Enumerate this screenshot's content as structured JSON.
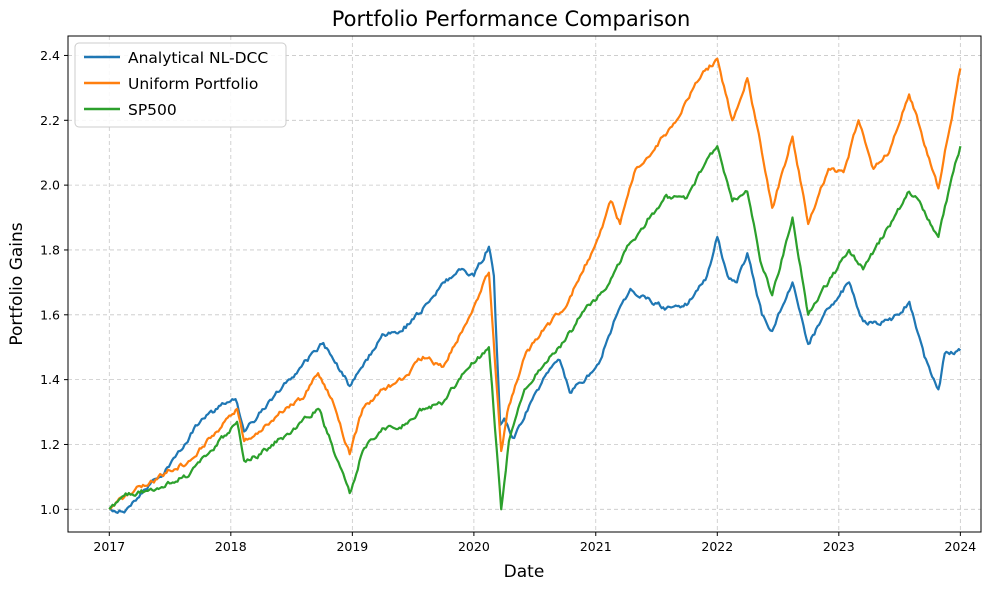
{
  "chart_data": {
    "type": "line",
    "title": "Portfolio Performance Comparison",
    "xlabel": "Date",
    "ylabel": "Portfolio Gains",
    "x_ticks": [
      "2017",
      "2018",
      "2019",
      "2020",
      "2021",
      "2022",
      "2023",
      "2024"
    ],
    "y_ticks": [
      "1.0",
      "1.2",
      "1.4",
      "1.6",
      "1.8",
      "2.0",
      "2.2",
      "2.4"
    ],
    "xlim": [
      "2016-08-30",
      "2024-03-03"
    ],
    "ylim": [
      0.93,
      2.46
    ],
    "grid": true,
    "legend_position": "top-left",
    "series": [
      {
        "name": "Analytical NL-DCC",
        "color": "#1f77b4",
        "points": [
          [
            "2017-01-01",
            1.0
          ],
          [
            "2017-02-15",
            0.99
          ],
          [
            "2017-04-15",
            1.06
          ],
          [
            "2017-06-01",
            1.1
          ],
          [
            "2017-08-01",
            1.18
          ],
          [
            "2017-10-01",
            1.27
          ],
          [
            "2017-12-01",
            1.32
          ],
          [
            "2018-01-15",
            1.34
          ],
          [
            "2018-02-10",
            1.24
          ],
          [
            "2018-04-01",
            1.3
          ],
          [
            "2018-06-01",
            1.37
          ],
          [
            "2018-08-01",
            1.44
          ],
          [
            "2018-10-01",
            1.51
          ],
          [
            "2018-11-15",
            1.45
          ],
          [
            "2018-12-24",
            1.38
          ],
          [
            "2019-02-01",
            1.44
          ],
          [
            "2019-04-01",
            1.54
          ],
          [
            "2019-06-01",
            1.55
          ],
          [
            "2019-08-01",
            1.62
          ],
          [
            "2019-10-01",
            1.7
          ],
          [
            "2019-12-01",
            1.74
          ],
          [
            "2020-01-01",
            1.72
          ],
          [
            "2020-02-15",
            1.81
          ],
          [
            "2020-03-01",
            1.72
          ],
          [
            "2020-03-20",
            1.26
          ],
          [
            "2020-04-01",
            1.28
          ],
          [
            "2020-05-01",
            1.22
          ],
          [
            "2020-06-15",
            1.32
          ],
          [
            "2020-08-01",
            1.41
          ],
          [
            "2020-09-15",
            1.46
          ],
          [
            "2020-10-15",
            1.36
          ],
          [
            "2020-12-01",
            1.4
          ],
          [
            "2021-01-15",
            1.46
          ],
          [
            "2021-03-01",
            1.59
          ],
          [
            "2021-04-15",
            1.68
          ],
          [
            "2021-06-01",
            1.65
          ],
          [
            "2021-08-01",
            1.62
          ],
          [
            "2021-10-01",
            1.63
          ],
          [
            "2021-12-01",
            1.72
          ],
          [
            "2022-01-01",
            1.84
          ],
          [
            "2022-02-01",
            1.72
          ],
          [
            "2022-03-01",
            1.7
          ],
          [
            "2022-04-01",
            1.79
          ],
          [
            "2022-05-15",
            1.6
          ],
          [
            "2022-06-15",
            1.55
          ],
          [
            "2022-08-15",
            1.7
          ],
          [
            "2022-10-01",
            1.51
          ],
          [
            "2022-12-01",
            1.62
          ],
          [
            "2023-02-01",
            1.7
          ],
          [
            "2023-03-15",
            1.58
          ],
          [
            "2023-05-01",
            1.57
          ],
          [
            "2023-07-01",
            1.6
          ],
          [
            "2023-08-01",
            1.64
          ],
          [
            "2023-09-15",
            1.47
          ],
          [
            "2023-10-27",
            1.37
          ],
          [
            "2023-11-15",
            1.48
          ],
          [
            "2024-01-01",
            1.49
          ]
        ]
      },
      {
        "name": "Uniform Portfolio",
        "color": "#ff7f0e",
        "points": [
          [
            "2017-01-01",
            1.0
          ],
          [
            "2017-03-01",
            1.05
          ],
          [
            "2017-05-01",
            1.08
          ],
          [
            "2017-07-01",
            1.12
          ],
          [
            "2017-09-01",
            1.15
          ],
          [
            "2017-11-01",
            1.22
          ],
          [
            "2018-01-20",
            1.31
          ],
          [
            "2018-02-10",
            1.21
          ],
          [
            "2018-04-01",
            1.24
          ],
          [
            "2018-06-01",
            1.3
          ],
          [
            "2018-08-01",
            1.34
          ],
          [
            "2018-09-20",
            1.42
          ],
          [
            "2018-11-01",
            1.34
          ],
          [
            "2018-12-24",
            1.17
          ],
          [
            "2019-02-01",
            1.31
          ],
          [
            "2019-04-01",
            1.37
          ],
          [
            "2019-06-01",
            1.4
          ],
          [
            "2019-08-01",
            1.47
          ],
          [
            "2019-10-01",
            1.44
          ],
          [
            "2019-12-01",
            1.56
          ],
          [
            "2020-02-15",
            1.73
          ],
          [
            "2020-03-23",
            1.18
          ],
          [
            "2020-04-15",
            1.32
          ],
          [
            "2020-06-01",
            1.47
          ],
          [
            "2020-08-01",
            1.56
          ],
          [
            "2020-10-01",
            1.62
          ],
          [
            "2020-11-15",
            1.72
          ],
          [
            "2021-01-01",
            1.82
          ],
          [
            "2021-02-15",
            1.95
          ],
          [
            "2021-03-15",
            1.88
          ],
          [
            "2021-05-01",
            2.05
          ],
          [
            "2021-07-01",
            2.12
          ],
          [
            "2021-09-01",
            2.2
          ],
          [
            "2021-11-15",
            2.34
          ],
          [
            "2022-01-01",
            2.39
          ],
          [
            "2022-02-15",
            2.2
          ],
          [
            "2022-04-01",
            2.33
          ],
          [
            "2022-05-15",
            2.1
          ],
          [
            "2022-06-15",
            1.93
          ],
          [
            "2022-08-15",
            2.15
          ],
          [
            "2022-10-01",
            1.88
          ],
          [
            "2022-12-01",
            2.05
          ],
          [
            "2023-01-15",
            2.04
          ],
          [
            "2023-03-01",
            2.2
          ],
          [
            "2023-04-15",
            2.05
          ],
          [
            "2023-06-01",
            2.1
          ],
          [
            "2023-07-31",
            2.28
          ],
          [
            "2023-09-01",
            2.18
          ],
          [
            "2023-10-27",
            1.99
          ],
          [
            "2023-12-01",
            2.18
          ],
          [
            "2024-01-01",
            2.36
          ]
        ]
      },
      {
        "name": "SP500",
        "color": "#2ca02c",
        "points": [
          [
            "2017-01-01",
            1.0
          ],
          [
            "2017-03-01",
            1.05
          ],
          [
            "2017-05-01",
            1.06
          ],
          [
            "2017-07-01",
            1.08
          ],
          [
            "2017-09-01",
            1.11
          ],
          [
            "2017-11-01",
            1.18
          ],
          [
            "2018-01-20",
            1.27
          ],
          [
            "2018-02-10",
            1.15
          ],
          [
            "2018-04-01",
            1.17
          ],
          [
            "2018-06-01",
            1.22
          ],
          [
            "2018-08-01",
            1.27
          ],
          [
            "2018-09-20",
            1.31
          ],
          [
            "2018-11-01",
            1.2
          ],
          [
            "2018-12-24",
            1.05
          ],
          [
            "2019-02-01",
            1.18
          ],
          [
            "2019-04-01",
            1.25
          ],
          [
            "2019-06-01",
            1.26
          ],
          [
            "2019-08-01",
            1.31
          ],
          [
            "2019-10-01",
            1.33
          ],
          [
            "2019-12-01",
            1.42
          ],
          [
            "2020-02-15",
            1.5
          ],
          [
            "2020-03-23",
            1.0
          ],
          [
            "2020-04-15",
            1.21
          ],
          [
            "2020-06-01",
            1.37
          ],
          [
            "2020-08-01",
            1.45
          ],
          [
            "2020-10-01",
            1.52
          ],
          [
            "2020-12-01",
            1.62
          ],
          [
            "2021-02-01",
            1.68
          ],
          [
            "2021-04-01",
            1.8
          ],
          [
            "2021-06-01",
            1.88
          ],
          [
            "2021-08-01",
            1.97
          ],
          [
            "2021-10-01",
            1.96
          ],
          [
            "2021-12-01",
            2.08
          ],
          [
            "2022-01-01",
            2.12
          ],
          [
            "2022-02-15",
            1.95
          ],
          [
            "2022-04-01",
            1.98
          ],
          [
            "2022-05-15",
            1.75
          ],
          [
            "2022-06-15",
            1.66
          ],
          [
            "2022-08-15",
            1.9
          ],
          [
            "2022-10-01",
            1.6
          ],
          [
            "2022-12-01",
            1.7
          ],
          [
            "2023-02-01",
            1.8
          ],
          [
            "2023-03-15",
            1.74
          ],
          [
            "2023-05-01",
            1.82
          ],
          [
            "2023-07-31",
            1.98
          ],
          [
            "2023-09-01",
            1.95
          ],
          [
            "2023-10-27",
            1.84
          ],
          [
            "2023-12-01",
            2.0
          ],
          [
            "2024-01-01",
            2.12
          ]
        ]
      }
    ]
  }
}
